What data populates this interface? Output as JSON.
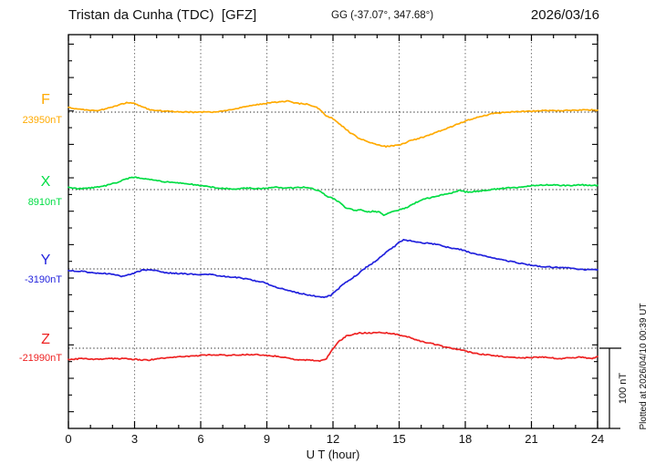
{
  "header": {
    "station_title": "Tristan da Cunha (TDC)  [GFZ]",
    "geo_coords": "GG (-37.07°, 347.68°)",
    "date": "2026/03/16"
  },
  "footer": {
    "plotted_at": "Plotted at 2026/04/10 00:39 UT"
  },
  "scale_bar": {
    "label": "100 nT",
    "nT": 100
  },
  "chart_data": {
    "type": "line",
    "title": "Tristan da Cunha (TDC) [GFZ] magnetogram 2026/03/16",
    "xlabel": "U T (hour)",
    "x_range": [
      0,
      24
    ],
    "x_ticks": [
      "0",
      "3",
      "6",
      "9",
      "12",
      "15",
      "18",
      "21",
      "24"
    ],
    "grid_hours": [
      3,
      6,
      9,
      12,
      15,
      18,
      21
    ],
    "y_scale_reference": "100 nT",
    "legend_position": "left",
    "series": [
      {
        "name": "F",
        "color": "#FFAA00",
        "baseline_label": "23950nT",
        "baseline_nT": 23950,
        "points": [
          [
            0,
            23956
          ],
          [
            0.6,
            23953
          ],
          [
            1.4,
            23952
          ],
          [
            2.2,
            23958
          ],
          [
            2.7,
            23962
          ],
          [
            3.0,
            23961
          ],
          [
            3.3,
            23957
          ],
          [
            3.7,
            23953
          ],
          [
            4.5,
            23951
          ],
          [
            5.6,
            23950
          ],
          [
            6.6,
            23950
          ],
          [
            7.4,
            23953
          ],
          [
            8.1,
            23957
          ],
          [
            8.7,
            23960
          ],
          [
            9.3,
            23962
          ],
          [
            9.9,
            23964
          ],
          [
            10.3,
            23961
          ],
          [
            10.8,
            23960
          ],
          [
            11.2,
            23957
          ],
          [
            11.5,
            23951
          ],
          [
            11.7,
            23945
          ],
          [
            12.0,
            23942
          ],
          [
            12.4,
            23933
          ],
          [
            12.8,
            23924
          ],
          [
            13.2,
            23917
          ],
          [
            13.7,
            23912
          ],
          [
            14.1,
            23909
          ],
          [
            14.4,
            23907
          ],
          [
            14.7,
            23908
          ],
          [
            15.0,
            23909
          ],
          [
            15.5,
            23914
          ],
          [
            16.1,
            23919
          ],
          [
            16.8,
            23926
          ],
          [
            17.4,
            23932
          ],
          [
            18.0,
            23939
          ],
          [
            18.6,
            23944
          ],
          [
            19.2,
            23948
          ],
          [
            19.9,
            23950
          ],
          [
            20.7,
            23951
          ],
          [
            21.7,
            23952
          ],
          [
            22.8,
            23952
          ],
          [
            23.6,
            23953
          ],
          [
            24,
            23952
          ]
        ]
      },
      {
        "name": "X",
        "color": "#00DD44",
        "baseline_label": "8910nT",
        "baseline_nT": 8910,
        "points": [
          [
            0,
            8913
          ],
          [
            0.4,
            8911
          ],
          [
            1.0,
            8912
          ],
          [
            1.7,
            8915
          ],
          [
            2.3,
            8920
          ],
          [
            2.7,
            8924
          ],
          [
            3.0,
            8926
          ],
          [
            3.3,
            8924
          ],
          [
            3.7,
            8923
          ],
          [
            4.3,
            8920
          ],
          [
            5.2,
            8918
          ],
          [
            6.0,
            8915
          ],
          [
            6.8,
            8912
          ],
          [
            7.5,
            8911
          ],
          [
            8.1,
            8912
          ],
          [
            8.7,
            8911
          ],
          [
            9.3,
            8913
          ],
          [
            9.9,
            8912
          ],
          [
            10.6,
            8913
          ],
          [
            11.0,
            8912
          ],
          [
            11.4,
            8908
          ],
          [
            11.7,
            8902
          ],
          [
            12.0,
            8899
          ],
          [
            12.3,
            8894
          ],
          [
            12.6,
            8887
          ],
          [
            13.0,
            8884
          ],
          [
            13.2,
            8885
          ],
          [
            13.5,
            8882
          ],
          [
            13.8,
            8883
          ],
          [
            14.1,
            8882
          ],
          [
            14.3,
            8878
          ],
          [
            14.6,
            8882
          ],
          [
            14.9,
            8884
          ],
          [
            15.3,
            8887
          ],
          [
            15.7,
            8893
          ],
          [
            16.1,
            8898
          ],
          [
            16.6,
            8901
          ],
          [
            17.0,
            8904
          ],
          [
            17.4,
            8906
          ],
          [
            17.7,
            8909
          ],
          [
            18.0,
            8907
          ],
          [
            18.6,
            8908
          ],
          [
            19.2,
            8910
          ],
          [
            19.9,
            8912
          ],
          [
            20.5,
            8913
          ],
          [
            21.1,
            8915
          ],
          [
            21.7,
            8916
          ],
          [
            22.6,
            8915
          ],
          [
            23.2,
            8916
          ],
          [
            23.7,
            8915
          ],
          [
            24,
            8915
          ]
        ]
      },
      {
        "name": "Y",
        "color": "#2222DD",
        "baseline_label": "-3190nT",
        "baseline_nT": -3190,
        "points": [
          [
            0,
            -3192
          ],
          [
            0.6,
            -3193
          ],
          [
            1.2,
            -3195
          ],
          [
            1.9,
            -3196
          ],
          [
            2.4,
            -3199
          ],
          [
            2.9,
            -3196
          ],
          [
            3.4,
            -3191
          ],
          [
            3.9,
            -3192
          ],
          [
            4.5,
            -3195
          ],
          [
            5.2,
            -3196
          ],
          [
            5.8,
            -3197
          ],
          [
            6.4,
            -3197
          ],
          [
            7.0,
            -3199
          ],
          [
            7.7,
            -3201
          ],
          [
            8.2,
            -3203
          ],
          [
            8.5,
            -3205
          ],
          [
            8.9,
            -3207
          ],
          [
            9.3,
            -3212
          ],
          [
            9.7,
            -3215
          ],
          [
            10.1,
            -3218
          ],
          [
            10.6,
            -3221
          ],
          [
            11.2,
            -3224
          ],
          [
            11.6,
            -3225
          ],
          [
            11.9,
            -3223
          ],
          [
            12.2,
            -3216
          ],
          [
            12.5,
            -3208
          ],
          [
            12.9,
            -3201
          ],
          [
            13.2,
            -3195
          ],
          [
            13.5,
            -3188
          ],
          [
            13.9,
            -3181
          ],
          [
            14.2,
            -3174
          ],
          [
            14.5,
            -3167
          ],
          [
            14.8,
            -3162
          ],
          [
            15.0,
            -3156
          ],
          [
            15.2,
            -3154
          ],
          [
            15.5,
            -3155
          ],
          [
            15.9,
            -3157
          ],
          [
            16.6,
            -3159
          ],
          [
            17.2,
            -3163
          ],
          [
            17.8,
            -3166
          ],
          [
            18.4,
            -3171
          ],
          [
            19.0,
            -3175
          ],
          [
            19.7,
            -3179
          ],
          [
            20.3,
            -3182
          ],
          [
            20.9,
            -3185
          ],
          [
            21.5,
            -3187
          ],
          [
            22.1,
            -3188
          ],
          [
            22.8,
            -3189
          ],
          [
            23.4,
            -3191
          ],
          [
            24,
            -3191
          ]
        ]
      },
      {
        "name": "Z",
        "color": "#EE2222",
        "baseline_label": "-21990nT",
        "baseline_nT": -21990,
        "points": [
          [
            0,
            -22004
          ],
          [
            0.6,
            -22003
          ],
          [
            1.2,
            -22004
          ],
          [
            1.9,
            -22003
          ],
          [
            2.5,
            -22003
          ],
          [
            3.1,
            -22004
          ],
          [
            3.6,
            -22005
          ],
          [
            4.1,
            -22003
          ],
          [
            4.8,
            -22001
          ],
          [
            5.4,
            -22000
          ],
          [
            6.0,
            -21999
          ],
          [
            6.6,
            -21998
          ],
          [
            7.2,
            -21999
          ],
          [
            7.9,
            -21998
          ],
          [
            8.5,
            -21998
          ],
          [
            9.1,
            -21999
          ],
          [
            9.7,
            -22001
          ],
          [
            10.3,
            -22004
          ],
          [
            11.0,
            -22005
          ],
          [
            11.4,
            -22006
          ],
          [
            11.7,
            -22003
          ],
          [
            11.9,
            -21994
          ],
          [
            12.1,
            -21987
          ],
          [
            12.3,
            -21981
          ],
          [
            12.6,
            -21975
          ],
          [
            13.0,
            -21972
          ],
          [
            13.2,
            -21971
          ],
          [
            13.7,
            -21971
          ],
          [
            14.1,
            -21970
          ],
          [
            14.5,
            -21971
          ],
          [
            14.9,
            -21973
          ],
          [
            15.3,
            -21975
          ],
          [
            15.7,
            -21979
          ],
          [
            16.1,
            -21982
          ],
          [
            16.6,
            -21985
          ],
          [
            17.0,
            -21988
          ],
          [
            17.4,
            -21990
          ],
          [
            17.8,
            -21992
          ],
          [
            18.2,
            -21995
          ],
          [
            18.6,
            -21997
          ],
          [
            19.2,
            -21999
          ],
          [
            19.9,
            -22001
          ],
          [
            20.7,
            -22002
          ],
          [
            21.5,
            -22001
          ],
          [
            22.3,
            -22003
          ],
          [
            23.2,
            -22001
          ],
          [
            23.7,
            -22003
          ],
          [
            24,
            -22001
          ]
        ]
      }
    ]
  }
}
